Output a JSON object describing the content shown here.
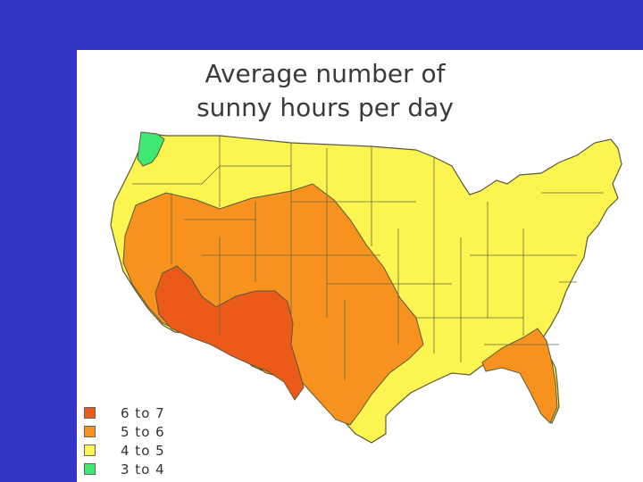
{
  "map": {
    "title_lines": [
      "Average number of",
      "sunny hours per day"
    ]
  },
  "legend": {
    "items": [
      {
        "label": "6 to  7",
        "color": "#ec5a1a"
      },
      {
        "label": "5 to  6",
        "color": "#f7921e"
      },
      {
        "label": "4 to  5",
        "color": "#fcf450"
      },
      {
        "label": "3 to  4",
        "color": "#3ee872"
      }
    ]
  },
  "colors": {
    "background": "#3434c6",
    "panel": "#ffffff",
    "border": "#5a5a3a"
  }
}
